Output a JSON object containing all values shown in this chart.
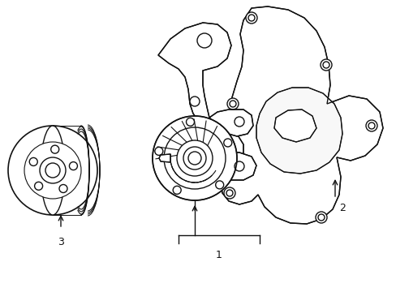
{
  "bg": "#ffffff",
  "lc": "#111111",
  "lw": 1.0,
  "fig_w": 4.89,
  "fig_h": 3.6,
  "dpi": 100,
  "labels": [
    "1",
    "2",
    "3"
  ],
  "label_fs": 9
}
